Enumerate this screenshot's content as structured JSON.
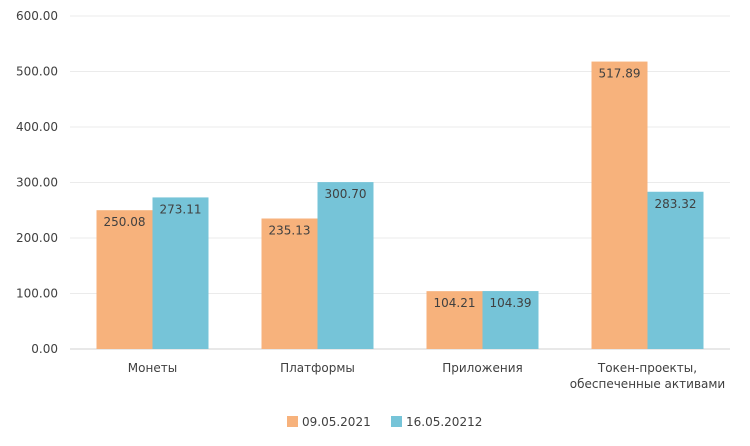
{
  "chart_data": {
    "type": "bar",
    "categories": [
      [
        "Монеты"
      ],
      [
        "Платформы"
      ],
      [
        "Приложения"
      ],
      [
        "Токен-проекты,",
        "обеспеченные активами"
      ]
    ],
    "series": [
      {
        "name": "09.05.2021",
        "color": "#F7B27C",
        "values": [
          250.08,
          235.13,
          104.21,
          517.89
        ],
        "labels": [
          "250.08",
          "235.13",
          "104.21",
          "517.89"
        ]
      },
      {
        "name": "16.05.20212",
        "color": "#76C4D8",
        "values": [
          273.11,
          300.7,
          104.39,
          283.32
        ],
        "labels": [
          "273.11",
          "300.70",
          "104.39",
          "283.32"
        ]
      }
    ],
    "y_ticks": [
      "0.00",
      "100.00",
      "200.00",
      "300.00",
      "400.00",
      "500.00",
      "600.00"
    ],
    "ylim": [
      0,
      600
    ],
    "grid": true,
    "legend_position": "bottom-center"
  }
}
